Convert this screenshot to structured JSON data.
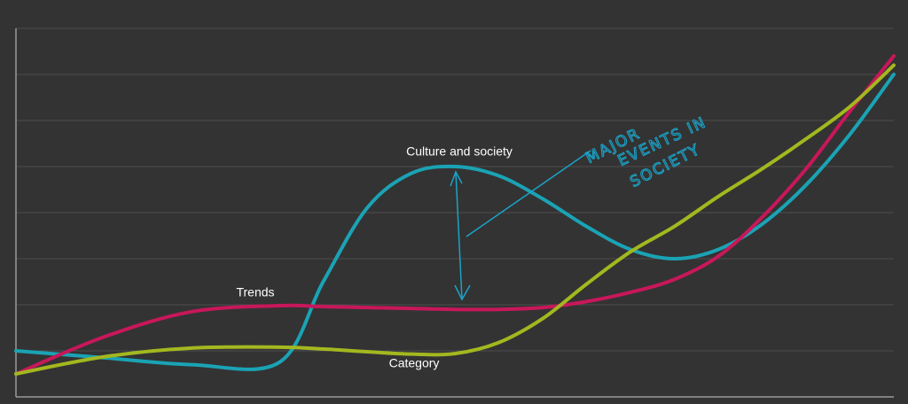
{
  "chart_data": {
    "type": "line",
    "x": [
      0,
      1,
      2,
      3,
      3.5,
      4,
      4.5,
      5,
      5.5,
      6,
      6.5,
      7,
      7.5,
      8,
      8.5,
      9,
      9.5,
      10
    ],
    "xlim": [
      0,
      10
    ],
    "ylim": [
      0,
      8
    ],
    "yticks": [
      0,
      1,
      2,
      3,
      4,
      5,
      6,
      7,
      8
    ],
    "grid": true,
    "series": [
      {
        "name": "Culture and society",
        "color": "#1aa3b5",
        "values": [
          1.0,
          0.85,
          0.7,
          0.75,
          2.5,
          4.1,
          4.85,
          5.0,
          4.8,
          4.3,
          3.7,
          3.2,
          3.0,
          3.2,
          3.75,
          4.6,
          5.7,
          7.0
        ]
      },
      {
        "name": "Trends",
        "color": "#c8175a",
        "values": [
          0.5,
          1.3,
          1.85,
          1.98,
          1.96,
          1.94,
          1.92,
          1.9,
          1.9,
          1.94,
          2.07,
          2.27,
          2.55,
          3.05,
          3.9,
          4.95,
          6.2,
          7.4
        ]
      },
      {
        "name": "Category",
        "color": "#a3b81f",
        "values": [
          0.5,
          0.87,
          1.06,
          1.08,
          1.04,
          0.98,
          0.93,
          0.94,
          1.18,
          1.7,
          2.45,
          3.15,
          3.7,
          4.35,
          4.95,
          5.6,
          6.3,
          7.2
        ]
      }
    ],
    "annotations": [
      "MAJOR",
      "EVENTS IN",
      "SOCIETY"
    ]
  }
}
